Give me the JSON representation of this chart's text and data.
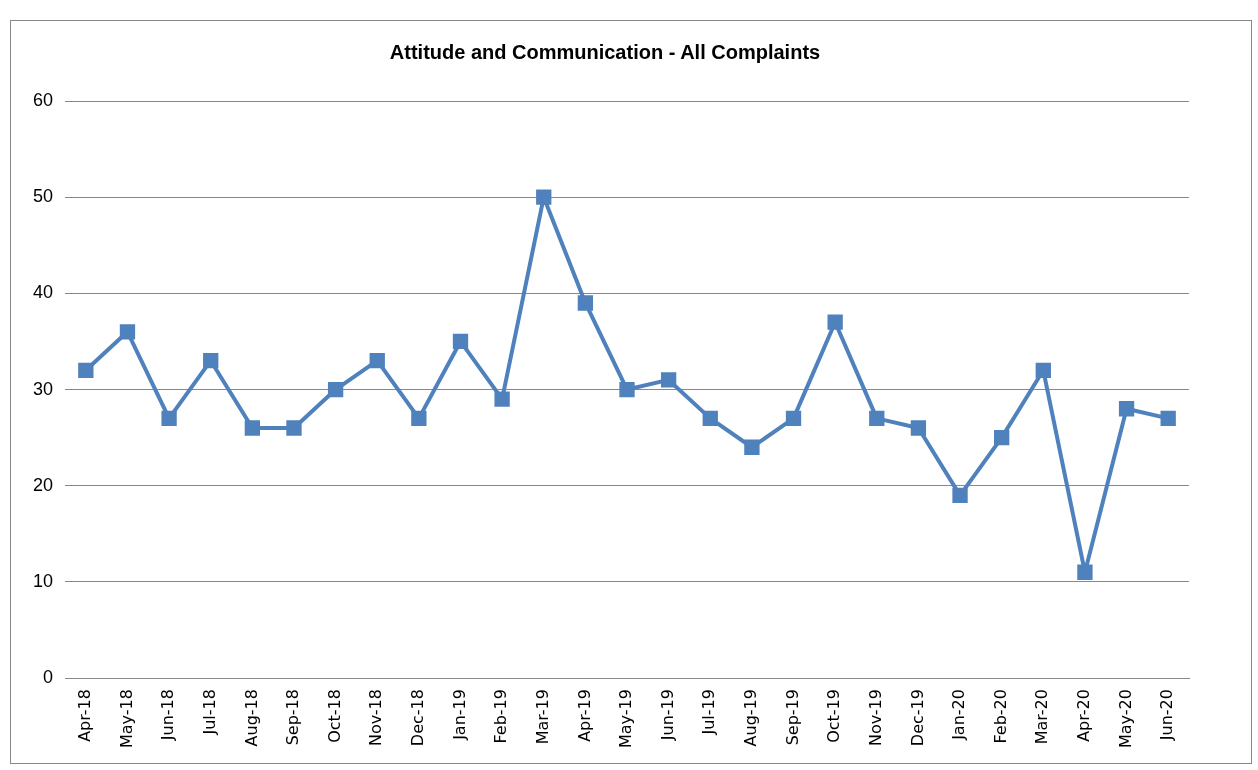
{
  "chart_data": {
    "type": "line",
    "title": "Attitude and Communication - All Complaints",
    "categories": [
      "Apr-18",
      "May-18",
      "Jun-18",
      "Jul-18",
      "Aug-18",
      "Sep-18",
      "Oct-18",
      "Nov-18",
      "Dec-18",
      "Jan-19",
      "Feb-19",
      "Mar-19",
      "Apr-19",
      "May-19",
      "Jun-19",
      "Jul-19",
      "Aug-19",
      "Sep-19",
      "Oct-19",
      "Nov-19",
      "Dec-19",
      "Jan-20",
      "Feb-20",
      "Mar-20",
      "Apr-20",
      "May-20",
      "Jun-20"
    ],
    "series": [
      {
        "color": "#4f81bd",
        "values": [
          32,
          36,
          27,
          33,
          26,
          26,
          30,
          33,
          27,
          35,
          29,
          50,
          39,
          30,
          31,
          27,
          24,
          27,
          37,
          27,
          26,
          19,
          25,
          32,
          11,
          28,
          27
        ]
      }
    ],
    "ylim": [
      0,
      60
    ],
    "yticks": [
      0,
      10,
      20,
      30,
      40,
      50,
      60
    ],
    "grid": "y",
    "legend": false,
    "marker": "square",
    "line_style": "solid"
  }
}
